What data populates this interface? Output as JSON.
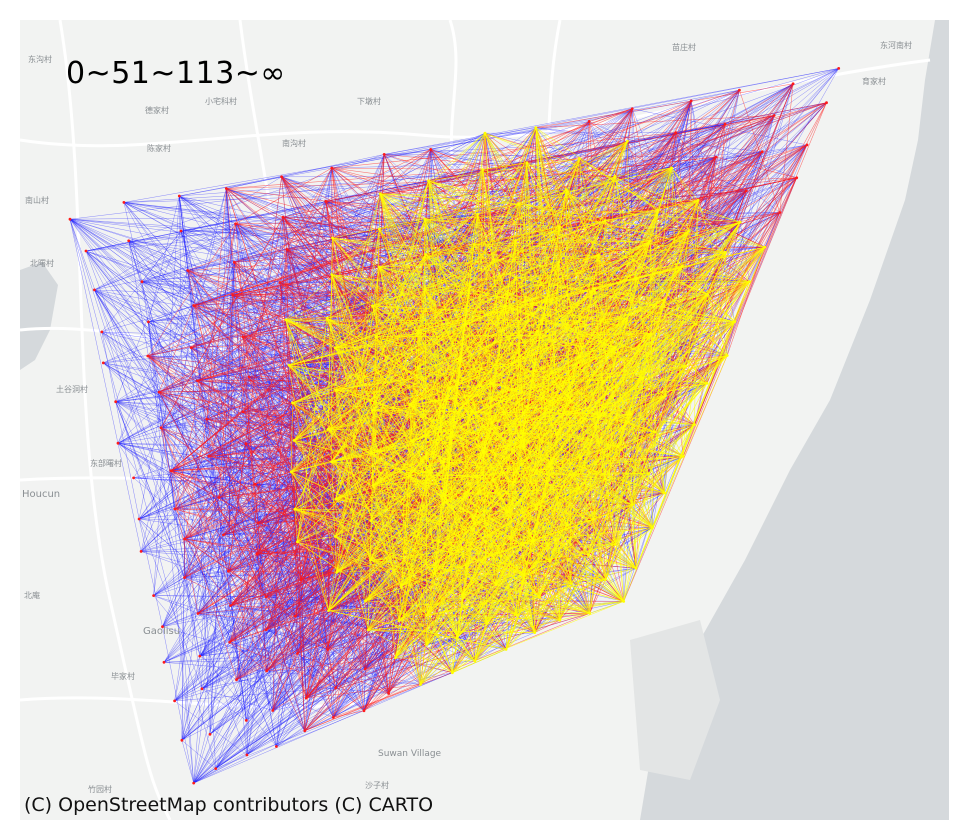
{
  "legend": {
    "text": "0~51~113~∞"
  },
  "attribution": "(C) OpenStreetMap contributors (C) CARTO",
  "map_labels": [
    "东沟村",
    "小宅科村",
    "下墩村",
    "南沟村",
    "德家村",
    "陈家村",
    "南山村",
    "北曙村",
    "土谷洞村",
    "东部曙村",
    "Houcun",
    "北庵",
    "Gaolisu",
    "毕家村",
    "竹园村",
    "Suwan Village",
    "沙子村",
    "苗庄村",
    "东河南村",
    "育家村"
  ],
  "colors": {
    "low_flow": "#1f1fff",
    "mid_flow": "#ff1a1a",
    "high_flow": "#ffff00",
    "land": "#f2f3f2",
    "water": "#d5d9dc"
  }
}
